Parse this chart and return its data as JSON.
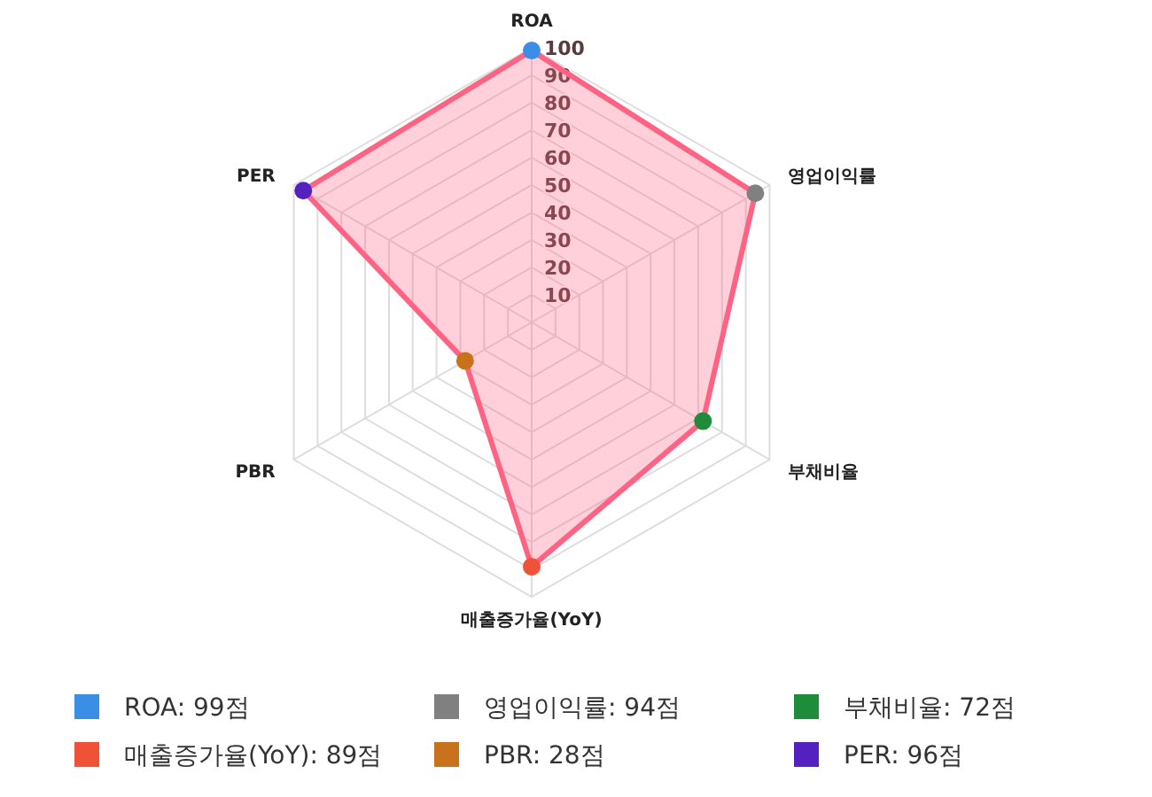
{
  "chart_data": {
    "type": "radar",
    "categories": [
      "ROA",
      "영업이익률",
      "부채비율",
      "매출증가율(YoY)",
      "PBR",
      "PER"
    ],
    "series": [
      {
        "color": "#ff6384",
        "values": [
          99,
          94,
          72,
          89,
          28,
          96
        ]
      }
    ],
    "colors": [
      "#3a8ee6",
      "#808080",
      "#1e8c3a",
      "#ef5237",
      "#c8721c",
      "#5520c0"
    ],
    "annotations": [
      "ROA: 99점",
      "영업이익률: 94점",
      "부채비율: 72점",
      "매출증가율(YoY): 89점",
      "PBR: 28점",
      "PER: 96점"
    ],
    "ylim": [
      0,
      100
    ],
    "yticks": [
      10,
      20,
      30,
      40,
      50,
      60,
      70,
      80,
      90,
      100
    ],
    "grid": true,
    "marker": "circle"
  }
}
